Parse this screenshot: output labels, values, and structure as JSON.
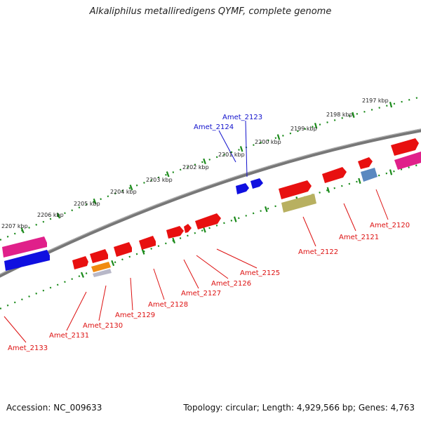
{
  "title": "Alkaliphilus metalliredigens QYMF, complete genome",
  "footer": {
    "accession_label": "Accession: NC_009633",
    "summary": "Topology: circular; Length: 4,929,566 bp; Genes: 4,763"
  },
  "colors": {
    "backbone": "#7a7a7a",
    "dots": "#1a8a1a",
    "gene_red": "#e81010",
    "gene_blue": "#1010e0",
    "gene_pink": "#e0208a",
    "gene_orange": "#f08a10",
    "gene_olive": "#b8b060",
    "gene_steel": "#5a88c0",
    "gene_grey": "#b8b8c8",
    "label_red": "#dd1111",
    "label_blue": "#1111cc"
  },
  "ticks": [
    {
      "label": "2197 kbp"
    },
    {
      "label": "2198 kbp"
    },
    {
      "label": "2199 kbp"
    },
    {
      "label": "2200 kbp"
    },
    {
      "label": "2201 kbp"
    },
    {
      "label": "2202 kbp"
    },
    {
      "label": "2203 kbp"
    },
    {
      "label": "2204 kbp"
    },
    {
      "label": "2205 kbp"
    },
    {
      "label": "2206 kbp"
    },
    {
      "label": "2207 kbp"
    }
  ],
  "gene_labels": [
    {
      "name": "Amet_2123",
      "color": "blue"
    },
    {
      "name": "Amet_2124",
      "color": "blue"
    },
    {
      "name": "Amet_2120",
      "color": "red"
    },
    {
      "name": "Amet_2121",
      "color": "red"
    },
    {
      "name": "Amet_2122",
      "color": "red"
    },
    {
      "name": "Amet_2125",
      "color": "red"
    },
    {
      "name": "Amet_2126",
      "color": "red"
    },
    {
      "name": "Amet_2127",
      "color": "red"
    },
    {
      "name": "Amet_2128",
      "color": "red"
    },
    {
      "name": "Amet_2129",
      "color": "red"
    },
    {
      "name": "Amet_2130",
      "color": "red"
    },
    {
      "name": "Amet_2131",
      "color": "red"
    },
    {
      "name": "Amet_2133",
      "color": "red"
    }
  ]
}
